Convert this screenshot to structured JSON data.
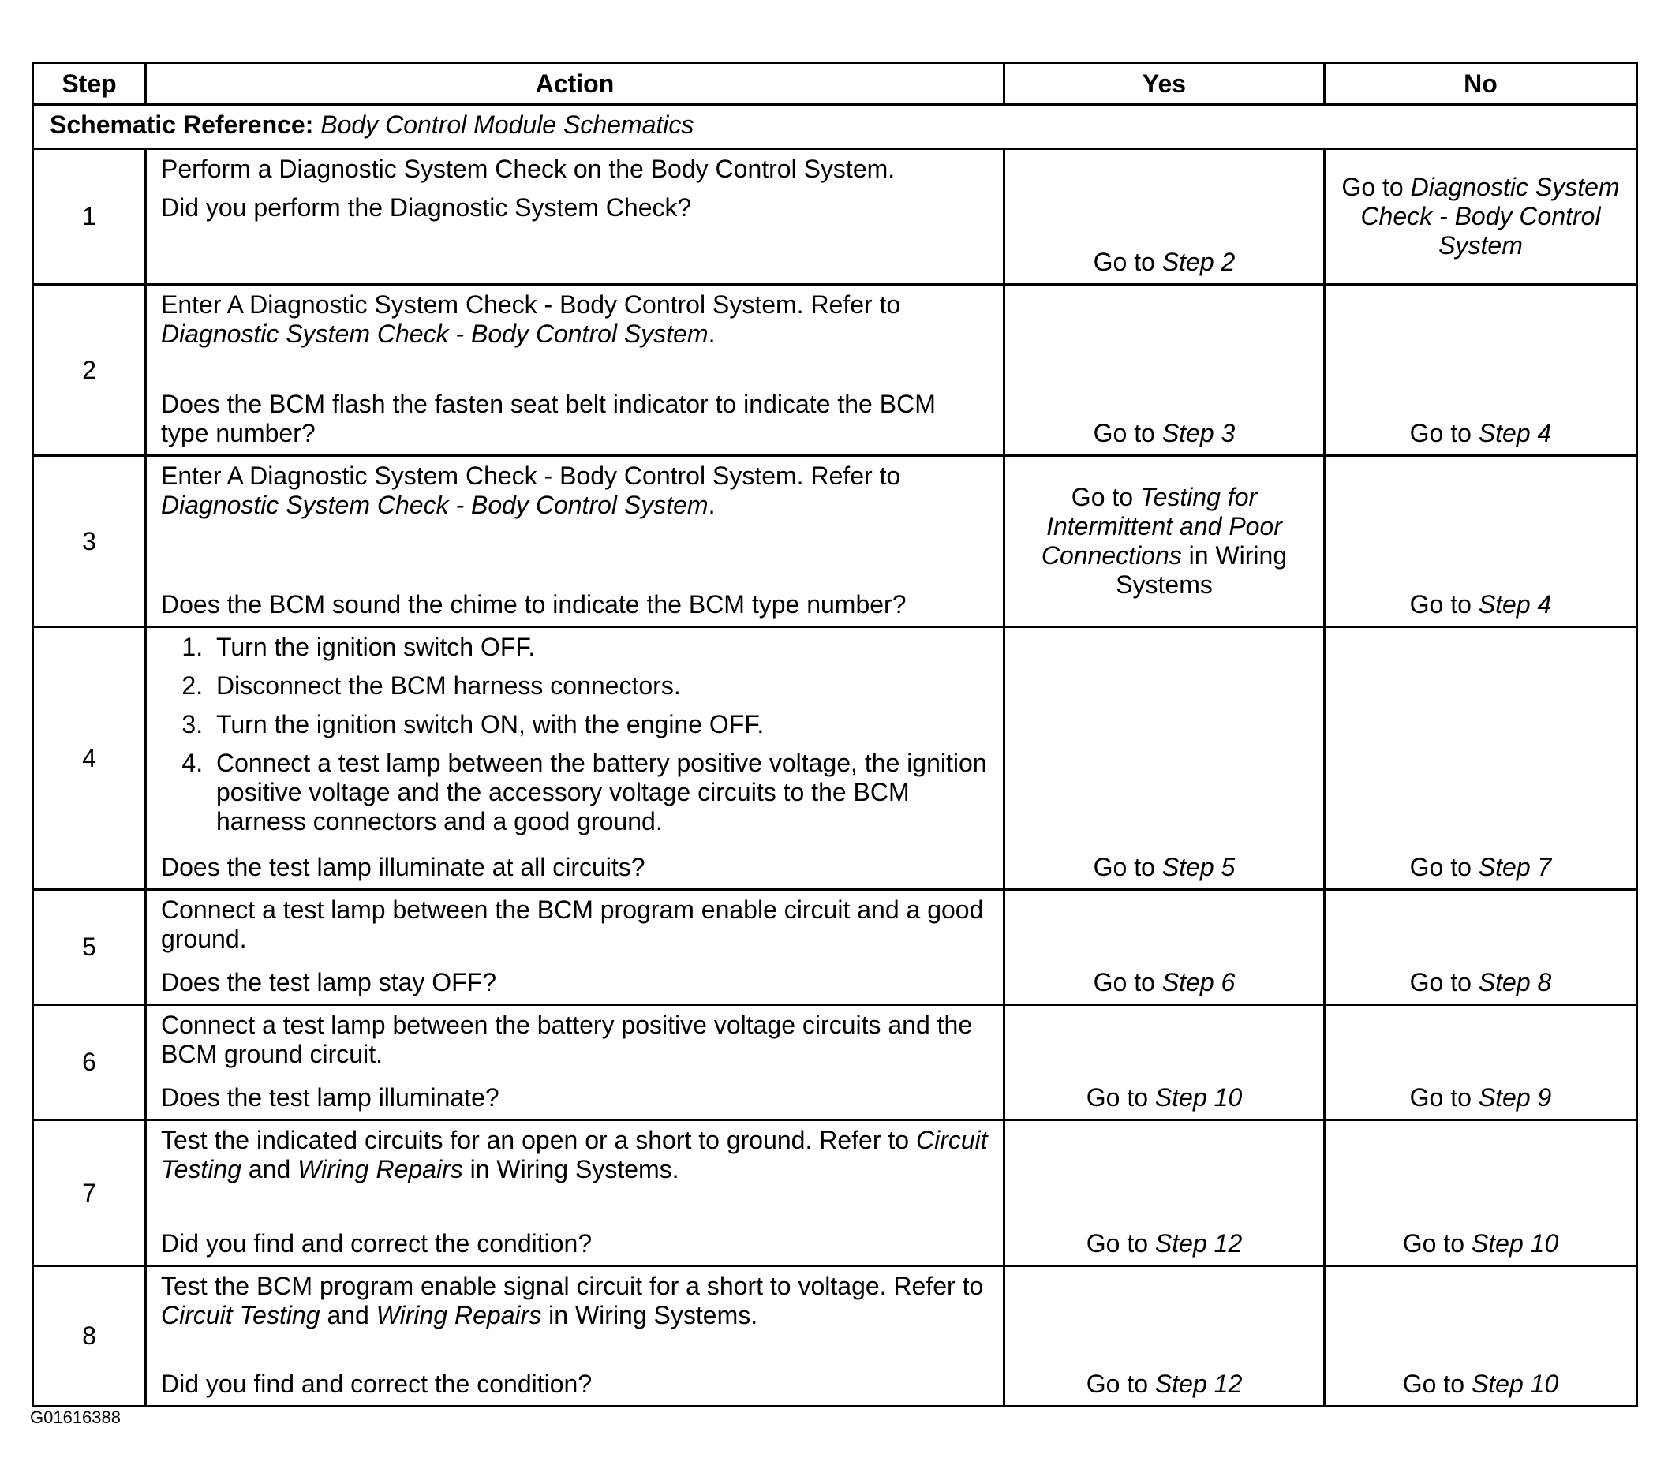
{
  "headers": {
    "step": "Step",
    "action": "Action",
    "yes": "Yes",
    "no": "No"
  },
  "schematic": {
    "label": "Schematic Reference:",
    "value": "Body Control Module Schematics"
  },
  "rows": [
    {
      "step": "1",
      "paragraphs": [
        [
          {
            "t": "Perform a Diagnostic System Check on the Body Control System."
          }
        ],
        [
          {
            "t": "Did you perform the Diagnostic System Check?"
          }
        ]
      ],
      "question": null,
      "yes": [
        {
          "t": "Go to "
        },
        {
          "t": "Step 2",
          "i": true
        }
      ],
      "no": [
        {
          "t": "Go to "
        },
        {
          "t": "Diagnostic System Check - Body Control System",
          "i": true
        }
      ]
    },
    {
      "step": "2",
      "paragraphs": [
        [
          {
            "t": "Enter A Diagnostic System Check - Body Control System. Refer to "
          },
          {
            "t": "Diagnostic System Check - Body Control System",
            "i": true
          },
          {
            "t": "."
          }
        ]
      ],
      "question": [
        {
          "t": "Does the BCM flash the fasten seat belt indicator to indicate the BCM type number?"
        }
      ],
      "yes": [
        {
          "t": "Go to "
        },
        {
          "t": "Step 3",
          "i": true
        }
      ],
      "no": [
        {
          "t": "Go to "
        },
        {
          "t": "Step 4",
          "i": true
        }
      ]
    },
    {
      "step": "3",
      "paragraphs": [
        [
          {
            "t": "Enter A Diagnostic System Check - Body Control System. Refer to "
          },
          {
            "t": "Diagnostic System Check - Body Control System",
            "i": true
          },
          {
            "t": "."
          }
        ]
      ],
      "question": [
        {
          "t": "Does the BCM sound the chime to indicate the BCM type number?"
        }
      ],
      "yes": [
        {
          "t": "Go to "
        },
        {
          "t": "Testing for Intermittent and Poor Connections",
          "i": true
        },
        {
          "t": " in Wiring Systems"
        }
      ],
      "no": [
        {
          "t": "Go to "
        },
        {
          "t": "Step 4",
          "i": true
        }
      ]
    },
    {
      "step": "4",
      "list": [
        "Turn the ignition switch OFF.",
        "Disconnect the BCM harness connectors.",
        "Turn the ignition switch ON, with the engine OFF.",
        "Connect a test lamp between the battery positive voltage, the ignition positive voltage and the accessory voltage circuits to the BCM harness connectors and a good ground."
      ],
      "question": [
        {
          "t": "Does the test lamp illuminate at all circuits?"
        }
      ],
      "yes": [
        {
          "t": "Go to "
        },
        {
          "t": "Step 5",
          "i": true
        }
      ],
      "no": [
        {
          "t": "Go to "
        },
        {
          "t": "Step 7",
          "i": true
        }
      ]
    },
    {
      "step": "5",
      "paragraphs": [
        [
          {
            "t": "Connect a test lamp between the BCM program enable circuit and a good ground."
          }
        ]
      ],
      "question": [
        {
          "t": "Does the test lamp stay OFF?"
        }
      ],
      "yes": [
        {
          "t": "Go to "
        },
        {
          "t": "Step 6",
          "i": true
        }
      ],
      "no": [
        {
          "t": "Go to "
        },
        {
          "t": "Step 8",
          "i": true
        }
      ]
    },
    {
      "step": "6",
      "paragraphs": [
        [
          {
            "t": "Connect a test lamp between the battery positive voltage circuits and the BCM ground circuit."
          }
        ]
      ],
      "question": [
        {
          "t": "Does the test lamp illuminate?"
        }
      ],
      "yes": [
        {
          "t": "Go to "
        },
        {
          "t": "Step 10",
          "i": true
        }
      ],
      "no": [
        {
          "t": "Go to "
        },
        {
          "t": "Step 9",
          "i": true
        }
      ]
    },
    {
      "step": "7",
      "paragraphs": [
        [
          {
            "t": "Test the indicated circuits for an open or a short to ground. Refer to "
          },
          {
            "t": "Circuit Testing",
            "i": true
          },
          {
            "t": " and "
          },
          {
            "t": "Wiring Repairs",
            "i": true
          },
          {
            "t": " in Wiring Systems."
          }
        ]
      ],
      "question": [
        {
          "t": "Did you find and correct the condition?"
        }
      ],
      "yes": [
        {
          "t": "Go to "
        },
        {
          "t": "Step 12",
          "i": true
        }
      ],
      "no": [
        {
          "t": "Go to "
        },
        {
          "t": "Step 10",
          "i": true
        }
      ]
    },
    {
      "step": "8",
      "paragraphs": [
        [
          {
            "t": "Test the BCM program enable signal circuit for a short to voltage. Refer to "
          },
          {
            "t": "Circuit Testing",
            "i": true
          },
          {
            "t": " and "
          },
          {
            "t": "Wiring Repairs",
            "i": true
          },
          {
            "t": " in Wiring Systems."
          }
        ]
      ],
      "question": [
        {
          "t": "Did you find and correct the condition?"
        }
      ],
      "yes": [
        {
          "t": "Go to "
        },
        {
          "t": "Step 12",
          "i": true
        }
      ],
      "no": [
        {
          "t": "Go to "
        },
        {
          "t": "Step 10",
          "i": true
        }
      ]
    }
  ],
  "figure_id": "G01616388"
}
